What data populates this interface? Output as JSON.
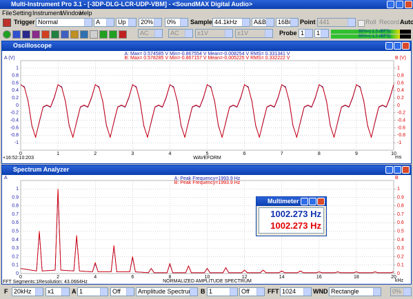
{
  "window": {
    "title": "Multi-Instrument Pro 3.1 - [-3DP-DLG-LCR-UDP-VBM] - <SoundMAX Digital Audio>"
  },
  "menu": [
    "File",
    "Setting",
    "Instrument",
    "Window",
    "Help"
  ],
  "toolbar": {
    "trigger_label": "Trigger",
    "trigger_mode": "Normal",
    "trigger_channel": "A",
    "trigger_edge": "Up",
    "trigger_level": "20%",
    "trigger_delay": "0%",
    "sample_label": "Sample",
    "sample_rate": "44.1kHz",
    "channels": "A&B",
    "bits": "16Bit",
    "point_label": "Point",
    "points": "441",
    "roll": "Roll",
    "record": "Record",
    "auto": "Auto"
  },
  "toolbar2": {
    "coupling_a": "AC",
    "coupling_b": "AC",
    "range_a": "±1V",
    "range_b": "±1V",
    "probe_label": "Probe",
    "probe_a": "1",
    "probe_b": "1",
    "meter_a": "86%=(-1.3 dBFS)",
    "meter_b": "86%=(-1.3 dBFS)"
  },
  "bottom_bar": {
    "f_label": "F",
    "frequency_range": "20kHz",
    "zoom": "x1",
    "a_label": "A",
    "a_scale": "1",
    "a_weighting": "Off",
    "spectrum_type": "Amplitude Spectrum",
    "b_label": "B",
    "b_scale": "1",
    "b_weighting": "Off",
    "fft_label": "FFT",
    "fft_size": "1024",
    "wnd_label": "WND",
    "window_function": "Rectangle",
    "overlap": "0%"
  },
  "multimeter": {
    "title": "Multimeter",
    "reading_a": "1002.273 Hz",
    "reading_b": "1002.273 Hz"
  },
  "chart_data": [
    {
      "type": "line",
      "title": "Oscilloscope",
      "annotations": [
        "A: Max= 0.574585 V  Min=-0.867554 V  Mean=-0.008254 V  RMS= 0.331341 V",
        "B: Max= 0.578285 V  Min=-0.867157 V  Mean=-0.005225 V  RMS= 0.332222 V"
      ],
      "ylabel": "A (V)",
      "y2label": "B (V)",
      "xlabel": "WAVEFORM",
      "xunit": "ms",
      "timestamp": "+16:52:10:203",
      "x": [
        0,
        0.1,
        0.2,
        0.3,
        0.4,
        0.5,
        0.6,
        0.7,
        0.8,
        0.9,
        1,
        1.1,
        1.2,
        1.3,
        1.4,
        1.5,
        1.6,
        1.7,
        1.8,
        1.9,
        2,
        2.1,
        2.2,
        2.3,
        2.4,
        2.5,
        2.6,
        2.7,
        2.8,
        2.9,
        3,
        3.1,
        3.2,
        3.3,
        3.4,
        3.5,
        3.6,
        3.7,
        3.8,
        3.9,
        4,
        4.1,
        4.2,
        4.3,
        4.4,
        4.5,
        4.6,
        4.7,
        4.8,
        4.9,
        5,
        5.1,
        5.2,
        5.3,
        5.4,
        5.5,
        5.6,
        5.7,
        5.8,
        5.9,
        6,
        6.1,
        6.2,
        6.3,
        6.4,
        6.5,
        6.6,
        6.7,
        6.8,
        6.9,
        7,
        7.1,
        7.2,
        7.3,
        7.4,
        7.5,
        7.6,
        7.7,
        7.8,
        7.9,
        8,
        8.1,
        8.2,
        8.3,
        8.4,
        8.5,
        8.6,
        8.7,
        8.8,
        8.9,
        9,
        9.1,
        9.2,
        9.3,
        9.4,
        9.5,
        9.6,
        9.7,
        9.8,
        9.9,
        10
      ],
      "xlim": [
        0,
        10
      ],
      "xticks": [
        0,
        1,
        2,
        3,
        4,
        5,
        6,
        7,
        8,
        9,
        10
      ],
      "ylim": [
        -1.2,
        1.2
      ],
      "yticks": [
        1,
        0.8,
        0.6,
        0.4,
        0.2,
        0,
        -0.2,
        -0.4,
        -0.6,
        -0.8,
        -1
      ],
      "y2lim": [
        -1.2,
        1.2
      ],
      "y2ticks": [
        1,
        0.8,
        0.6,
        0.4,
        0.2,
        0,
        -0.2,
        -0.4,
        -0.6,
        -0.8,
        -1
      ],
      "grid": true,
      "series": [
        {
          "color": "#2020b0",
          "values": [
            0.55,
            0.5,
            0.1,
            -0.55,
            -0.85,
            -0.45,
            -0.05,
            0,
            -0.05,
            0.2,
            0.55,
            0.5,
            0.1,
            -0.55,
            -0.85,
            -0.45,
            -0.05,
            0,
            -0.05,
            0.2,
            0.55,
            0.5,
            0.1,
            -0.55,
            -0.85,
            -0.45,
            -0.05,
            0,
            -0.05,
            0.2,
            0.55,
            0.5,
            0.1,
            -0.55,
            -0.85,
            -0.45,
            -0.05,
            0,
            -0.05,
            0.2,
            0.55,
            0.5,
            0.1,
            -0.55,
            -0.85,
            -0.45,
            -0.05,
            0,
            -0.05,
            0.2,
            0.55,
            0.5,
            0.1,
            -0.55,
            -0.85,
            -0.45,
            -0.05,
            0,
            -0.05,
            0.2,
            0.55,
            0.5,
            0.1,
            -0.55,
            -0.85,
            -0.45,
            -0.05,
            0,
            -0.05,
            0.2,
            0.55,
            0.5,
            0.1,
            -0.55,
            -0.85,
            -0.45,
            -0.05,
            0,
            -0.05,
            0.2,
            0.55,
            0.5,
            0.1,
            -0.55,
            -0.85,
            -0.45,
            -0.05,
            0,
            -0.05,
            0.2,
            0.55,
            0.5,
            0.1,
            -0.55,
            -0.85,
            -0.45,
            -0.05,
            0,
            -0.05,
            0.2,
            0.55
          ]
        },
        {
          "color": "#e00000",
          "axis": "y2",
          "values": [
            0.56,
            0.48,
            0.12,
            -0.53,
            -0.86,
            -0.43,
            -0.04,
            0.01,
            -0.04,
            0.22,
            0.56,
            0.48,
            0.12,
            -0.53,
            -0.86,
            -0.43,
            -0.04,
            0.01,
            -0.04,
            0.22,
            0.56,
            0.48,
            0.12,
            -0.53,
            -0.86,
            -0.43,
            -0.04,
            0.01,
            -0.04,
            0.22,
            0.56,
            0.48,
            0.12,
            -0.53,
            -0.86,
            -0.43,
            -0.04,
            0.01,
            -0.04,
            0.22,
            0.56,
            0.48,
            0.12,
            -0.53,
            -0.86,
            -0.43,
            -0.04,
            0.01,
            -0.04,
            0.22,
            0.56,
            0.48,
            0.12,
            -0.53,
            -0.86,
            -0.43,
            -0.04,
            0.01,
            -0.04,
            0.22,
            0.56,
            0.48,
            0.12,
            -0.53,
            -0.86,
            -0.43,
            -0.04,
            0.01,
            -0.04,
            0.22,
            0.56,
            0.48,
            0.12,
            -0.53,
            -0.86,
            -0.43,
            -0.04,
            0.01,
            -0.04,
            0.22,
            0.56,
            0.48,
            0.12,
            -0.53,
            -0.86,
            -0.43,
            -0.04,
            0.01,
            -0.04,
            0.22,
            0.56,
            0.48,
            0.12,
            -0.53,
            -0.86,
            -0.43,
            -0.04,
            0.01,
            -0.04,
            0.22,
            0.56
          ]
        }
      ]
    },
    {
      "type": "line",
      "title": "Spectrum Analyzer",
      "annotations": [
        "A: Peak Frequency=1993.9 Hz",
        "B: Peak Frequency=1993.9 Hz"
      ],
      "ylabel": "A",
      "y2label": "B",
      "xlabel": "NORMALIZED AMPLITUDE SPECTRUM",
      "xunit": "kHz",
      "footer": [
        "FFT Segments:1",
        "Resolution: 43.0664Hz"
      ],
      "x": [
        0,
        0.85,
        1,
        1.15,
        1.85,
        2,
        2.15,
        2.85,
        3,
        3.15,
        3.85,
        4,
        4.15,
        4.85,
        5,
        5.15,
        5.85,
        6,
        6.15,
        6.85,
        7,
        7.15,
        7.85,
        8,
        8.15,
        8.85,
        9,
        9.15,
        9.85,
        10,
        10.15,
        10.85,
        11,
        11.15,
        11.85,
        12,
        12.15,
        12.85,
        13,
        13.15,
        13.85,
        14,
        14.15,
        14.85,
        15,
        15.15,
        15.85,
        16,
        16.15,
        16.85,
        17,
        17.15,
        17.85,
        18,
        18.15,
        18.85,
        19,
        19.15,
        19.85,
        20
      ],
      "xlim": [
        0,
        20
      ],
      "xticks": [
        0,
        2,
        4,
        6,
        8,
        10,
        12,
        14,
        16,
        18,
        20
      ],
      "ylim": [
        0,
        1.1
      ],
      "yticks": [
        0,
        0.1,
        0.2,
        0.3,
        0.4,
        0.5,
        0.6,
        0.7,
        0.8,
        0.9,
        1
      ],
      "y2lim": [
        0,
        1.1
      ],
      "y2ticks": [
        0,
        0.1,
        0.2,
        0.3,
        0.4,
        0.5,
        0.6,
        0.7,
        0.8,
        0.9,
        1
      ],
      "grid": true,
      "series": [
        {
          "color": "#2020b0",
          "values": [
            0.06,
            0.03,
            0.49,
            0.03,
            0.04,
            0.99,
            0.04,
            0.03,
            0.44,
            0.03,
            0.02,
            0.12,
            0.02,
            0.02,
            0.32,
            0.02,
            0.02,
            0.19,
            0.02,
            0.01,
            0.06,
            0.01,
            0.01,
            0.11,
            0.01,
            0.01,
            0.09,
            0.01,
            0.01,
            0.06,
            0.01,
            0.01,
            0.07,
            0.01,
            0.01,
            0.04,
            0.01,
            0.01,
            0.04,
            0.01,
            0.01,
            0.03,
            0.01,
            0.01,
            0.03,
            0.01,
            0.01,
            0.02,
            0.01,
            0.01,
            0.02,
            0.01,
            0.01,
            0.02,
            0.01,
            0.01,
            0.02,
            0.01,
            0.01,
            0.02
          ]
        },
        {
          "color": "#e00000",
          "axis": "y2",
          "values": [
            0.06,
            0.03,
            0.5,
            0.03,
            0.04,
            1,
            0.04,
            0.03,
            0.45,
            0.03,
            0.02,
            0.13,
            0.02,
            0.02,
            0.33,
            0.02,
            0.02,
            0.2,
            0.02,
            0.01,
            0.06,
            0.01,
            0.01,
            0.12,
            0.01,
            0.01,
            0.09,
            0.01,
            0.01,
            0.06,
            0.01,
            0.01,
            0.07,
            0.01,
            0.01,
            0.04,
            0.01,
            0.01,
            0.04,
            0.01,
            0.01,
            0.03,
            0.01,
            0.01,
            0.03,
            0.01,
            0.01,
            0.02,
            0.01,
            0.01,
            0.02,
            0.01,
            0.01,
            0.02,
            0.01,
            0.01,
            0.02,
            0.01,
            0.01,
            0.02
          ]
        }
      ]
    }
  ]
}
